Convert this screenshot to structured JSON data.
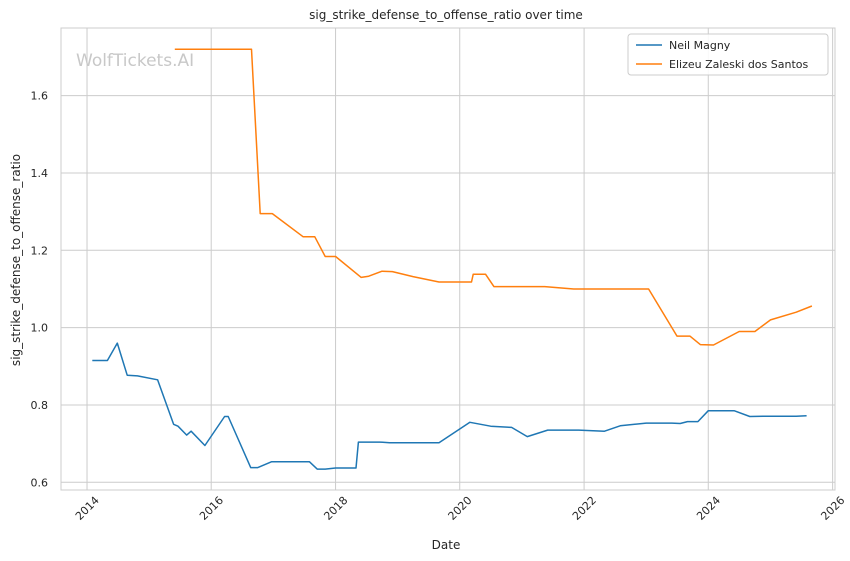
{
  "chart_data": {
    "type": "line",
    "title": "sig_strike_defense_to_offense_ratio over time",
    "xlabel": "Date",
    "ylabel": "sig_strike_defense_to_offense_ratio",
    "watermark": "WolfTickets.AI",
    "xlim": [
      "2013-08-01",
      "2026-01-15"
    ],
    "ylim": [
      0.58,
      1.775
    ],
    "x_ticks": [
      "2014",
      "2016",
      "2018",
      "2020",
      "2022",
      "2024",
      "2026"
    ],
    "y_ticks": [
      "0.6",
      "0.8",
      "1.0",
      "1.2",
      "1.4",
      "1.6"
    ],
    "grid": true,
    "legend_position": "top-right",
    "series": [
      {
        "name": "Neil Magny",
        "color": "#1f77b4",
        "points": [
          [
            "2014-02-01",
            0.915
          ],
          [
            "2014-05-01",
            0.915
          ],
          [
            "2014-06-28",
            0.96
          ],
          [
            "2014-08-25",
            0.877
          ],
          [
            "2014-10-25",
            0.875
          ],
          [
            "2015-02-20",
            0.865
          ],
          [
            "2015-05-25",
            0.75
          ],
          [
            "2015-06-20",
            0.745
          ],
          [
            "2015-08-10",
            0.722
          ],
          [
            "2015-09-05",
            0.732
          ],
          [
            "2015-11-25",
            0.695
          ],
          [
            "2016-03-20",
            0.77
          ],
          [
            "2016-04-10",
            0.77
          ],
          [
            "2016-08-20",
            0.638
          ],
          [
            "2016-10-01",
            0.638
          ],
          [
            "2016-12-20",
            0.653
          ],
          [
            "2017-08-01",
            0.653
          ],
          [
            "2017-09-15",
            0.634
          ],
          [
            "2017-11-01",
            0.634
          ],
          [
            "2018-01-01",
            0.637
          ],
          [
            "2018-05-01",
            0.637
          ],
          [
            "2018-05-15",
            0.704
          ],
          [
            "2018-09-20",
            0.704
          ],
          [
            "2018-11-15",
            0.702
          ],
          [
            "2019-09-01",
            0.702
          ],
          [
            "2020-03-01",
            0.755
          ],
          [
            "2020-07-01",
            0.745
          ],
          [
            "2020-11-01",
            0.742
          ],
          [
            "2021-02-01",
            0.718
          ],
          [
            "2021-06-01",
            0.735
          ],
          [
            "2021-12-01",
            0.735
          ],
          [
            "2022-05-01",
            0.732
          ],
          [
            "2022-08-01",
            0.746
          ],
          [
            "2023-01-01",
            0.753
          ],
          [
            "2023-06-01",
            0.753
          ],
          [
            "2023-07-20",
            0.752
          ],
          [
            "2023-09-01",
            0.757
          ],
          [
            "2023-11-01",
            0.757
          ],
          [
            "2024-01-01",
            0.785
          ],
          [
            "2024-06-01",
            0.785
          ],
          [
            "2024-09-01",
            0.77
          ],
          [
            "2024-12-01",
            0.771
          ],
          [
            "2025-06-01",
            0.771
          ],
          [
            "2025-08-01",
            0.772
          ]
        ]
      },
      {
        "name": "Elizeu Zaleski dos Santos",
        "color": "#ff7f0e",
        "points": [
          [
            "2015-06-01",
            1.72
          ],
          [
            "2016-08-25",
            1.72
          ],
          [
            "2016-10-15",
            1.295
          ],
          [
            "2016-12-25",
            1.295
          ],
          [
            "2017-06-25",
            1.235
          ],
          [
            "2017-09-01",
            1.235
          ],
          [
            "2017-11-01",
            1.184
          ],
          [
            "2018-01-01",
            1.184
          ],
          [
            "2018-06-01",
            1.13
          ],
          [
            "2018-07-15",
            1.133
          ],
          [
            "2018-10-01",
            1.146
          ],
          [
            "2018-12-01",
            1.145
          ],
          [
            "2019-04-01",
            1.132
          ],
          [
            "2019-09-01",
            1.118
          ],
          [
            "2020-03-10",
            1.118
          ],
          [
            "2020-03-20",
            1.138
          ],
          [
            "2020-06-01",
            1.138
          ],
          [
            "2020-07-20",
            1.106
          ],
          [
            "2021-05-15",
            1.106
          ],
          [
            "2021-11-01",
            1.1
          ],
          [
            "2023-01-15",
            1.1
          ],
          [
            "2023-07-01",
            0.978
          ],
          [
            "2023-09-15",
            0.978
          ],
          [
            "2023-11-15",
            0.956
          ],
          [
            "2024-02-01",
            0.955
          ],
          [
            "2024-07-01",
            0.99
          ],
          [
            "2024-10-01",
            0.99
          ],
          [
            "2025-01-01",
            1.02
          ],
          [
            "2025-06-01",
            1.04
          ],
          [
            "2025-09-01",
            1.056
          ]
        ]
      }
    ]
  }
}
